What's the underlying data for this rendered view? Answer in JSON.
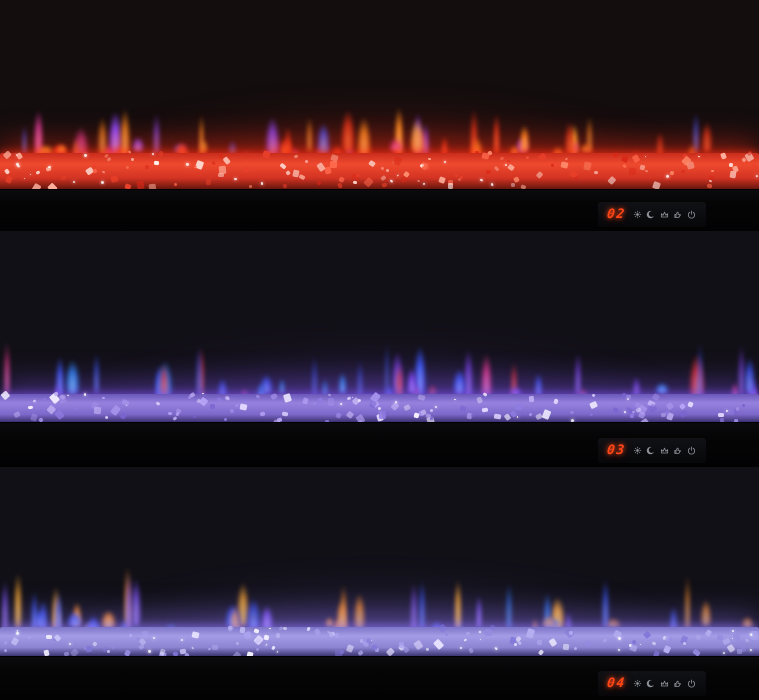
{
  "gallery": {
    "description": "three stacked linear electric fireplaces with crystal ember beds",
    "led_digit_color": "#ff4617",
    "icon_color": "#b4b9c2"
  },
  "controls": {
    "icons": [
      {
        "name": "flame-brightness-icon",
        "glyph": "sun"
      },
      {
        "name": "sleep-timer-icon",
        "glyph": "moon"
      },
      {
        "name": "flame-effect-icon",
        "glyph": "flame"
      },
      {
        "name": "heater-icon",
        "glyph": "hand"
      },
      {
        "name": "power-icon",
        "glyph": "power"
      }
    ]
  },
  "panels": [
    {
      "display_value": "02",
      "flame_theme": "red-orange",
      "seed": 11,
      "flame_count": 62,
      "crystal_count": 150,
      "tall_chance": 0.1,
      "colors": {
        "background": "#130d0e",
        "glow": "#ff2e14",
        "bed": [
          "#c92c1c",
          "#ef4a2e",
          "#d23322",
          "#5c130c"
        ],
        "crystals": [
          "#ff6a4e",
          "#ff8e6e",
          "#ffb3a0",
          "#e8402a",
          "#ffd9cf",
          "#fff2ee",
          "#d82818"
        ]
      },
      "flame_colors": [
        {
          "core": "#ffe08a",
          "main": "#ff8a1e",
          "w": 5
        },
        {
          "core": "#ffd75e",
          "main": "#ffb02e",
          "w": 3
        },
        {
          "core": "#ff8a4a",
          "main": "#e83418",
          "w": 4
        },
        {
          "core": "#d8a8ff",
          "main": "#8a4aff",
          "w": 1.4
        },
        {
          "core": "#ff9ad8",
          "main": "#d83a9a",
          "w": 0.8
        },
        {
          "core": "#9ab8ff",
          "main": "#4250e8",
          "w": 0.8
        }
      ]
    },
    {
      "display_value": "03",
      "flame_theme": "blue-purple",
      "seed": 22,
      "flame_count": 46,
      "crystal_count": 140,
      "tall_chance": 0.14,
      "colors": {
        "background": "#121017",
        "glow": "#7a52e8",
        "bed": [
          "#6a56b8",
          "#9682de",
          "#7c68ca",
          "#2c2258"
        ],
        "crystals": [
          "#a694ec",
          "#c2b2f4",
          "#8f7ce0",
          "#e2d8ff",
          "#f2eeff",
          "#7a64d0",
          "#b9a6f8"
        ]
      },
      "flame_colors": [
        {
          "core": "#9ab8ff",
          "main": "#3a54f4",
          "w": 4
        },
        {
          "core": "#86e0ff",
          "main": "#2b7de8",
          "w": 1.5
        },
        {
          "core": "#c8a8ff",
          "main": "#7a42f0",
          "w": 2.5
        },
        {
          "core": "#ff9ad8",
          "main": "#e0388a",
          "w": 2
        },
        {
          "core": "#ff8a7a",
          "main": "#e0302e",
          "w": 2
        }
      ]
    },
    {
      "display_value": "04",
      "flame_theme": "orange-blue-mix",
      "seed": 33,
      "flame_count": 50,
      "crystal_count": 140,
      "tall_chance": 0.14,
      "colors": {
        "background": "#111017",
        "glow": "#8a72f0",
        "bed": [
          "#7c74c6",
          "#a49ce6",
          "#8c84d2",
          "#332c66"
        ],
        "crystals": [
          "#aaa2ec",
          "#c8c2f6",
          "#e6e2ff",
          "#f4f2ff",
          "#948ae0",
          "#b4aef0",
          "#7f76d8"
        ]
      },
      "flame_colors": [
        {
          "core": "#ffe08a",
          "main": "#ff8f24",
          "w": 3.4
        },
        {
          "core": "#ffd75e",
          "main": "#f0a030",
          "w": 1.6
        },
        {
          "core": "#9ab8ff",
          "main": "#3a54f4",
          "w": 3
        },
        {
          "core": "#86c8ff",
          "main": "#2b6de8",
          "w": 1.4
        },
        {
          "core": "#c8a8ff",
          "main": "#7a52f0",
          "w": 1.6
        }
      ]
    }
  ]
}
